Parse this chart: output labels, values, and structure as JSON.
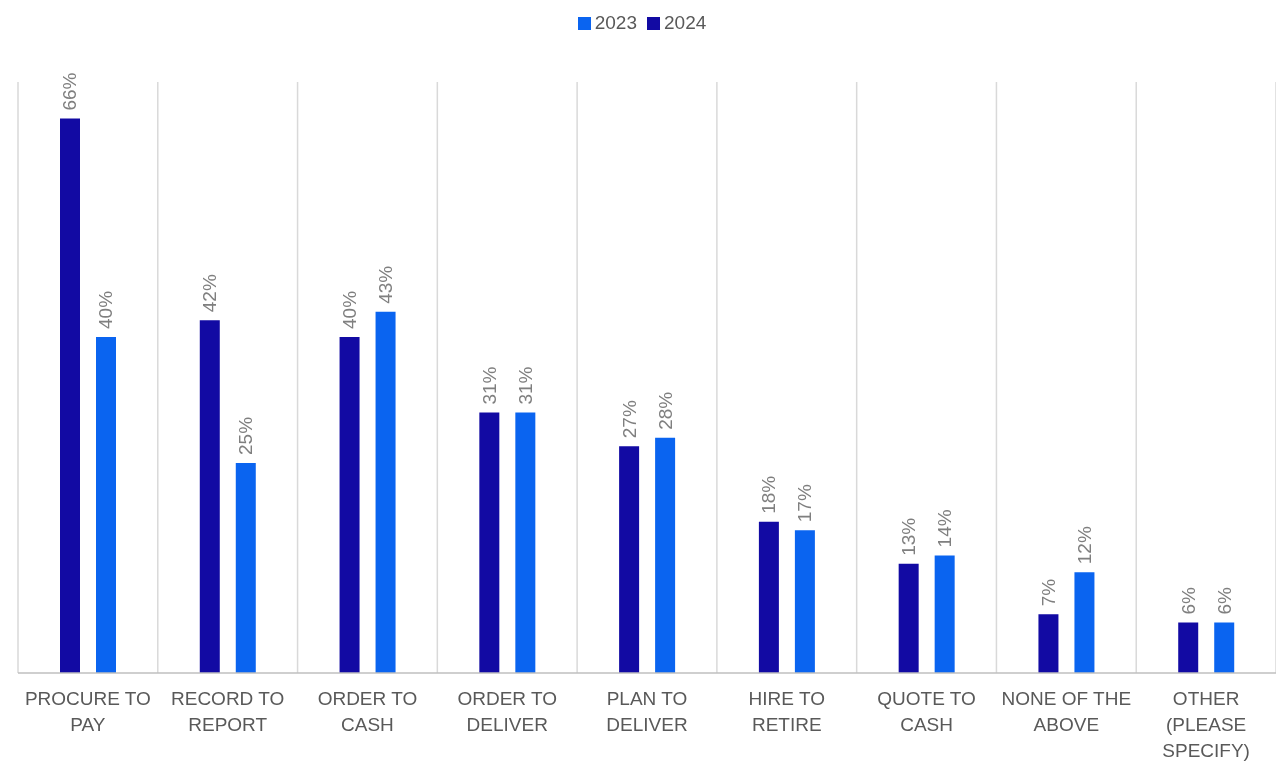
{
  "chart_data": {
    "type": "bar",
    "categories": [
      "PROCURE TO PAY",
      "RECORD TO REPORT",
      "ORDER TO CASH",
      "ORDER TO DELIVER",
      "PLAN TO DELIVER",
      "HIRE TO RETIRE",
      "QUOTE TO CASH",
      "NONE OF THE ABOVE",
      "OTHER (PLEASE SPECIFY)"
    ],
    "series": [
      {
        "name": "2024",
        "color": "#120aa3",
        "values": [
          66,
          42,
          40,
          31,
          27,
          18,
          13,
          7,
          6
        ],
        "value_labels": [
          "66%",
          "42%",
          "40%",
          "31%",
          "27%",
          "18%",
          "13%",
          "7%",
          "6%"
        ]
      },
      {
        "name": "2023",
        "color": "#0a64f0",
        "values": [
          40,
          25,
          43,
          31,
          28,
          17,
          14,
          12,
          6
        ],
        "value_labels": [
          "40%",
          "25%",
          "43%",
          "31%",
          "28%",
          "17%",
          "14%",
          "12%",
          "6%"
        ]
      }
    ],
    "grid": "x",
    "legend": "top"
  }
}
